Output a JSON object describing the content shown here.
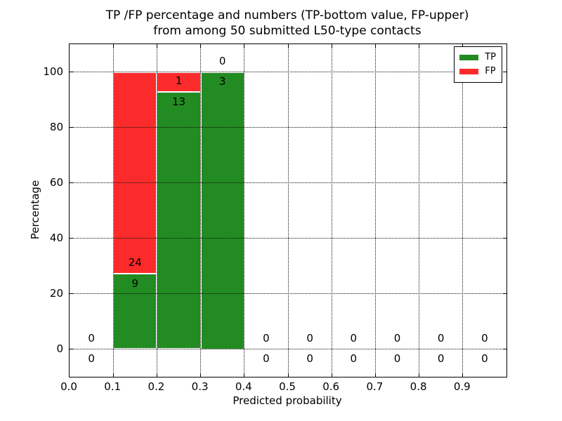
{
  "title": {
    "line1": "TP /FP percentage and numbers (TP-bottom value, FP-upper)",
    "line2": "from among 50 submitted L50-type contacts"
  },
  "axes": {
    "xlabel": "Predicted probability",
    "ylabel": "Percentage"
  },
  "legend": {
    "items": [
      {
        "label": "TP",
        "color": "#228b22"
      },
      {
        "label": "FP",
        "color": "#fc2b2b"
      }
    ]
  },
  "chart_data": {
    "type": "bar",
    "stacked": true,
    "normalized_to_percent": true,
    "title": "TP /FP percentage and numbers (TP-bottom value, FP-upper) from among 50 submitted L50-type contacts",
    "xlabel": "Predicted probability",
    "ylabel": "Percentage",
    "xlim": [
      0.0,
      1.0
    ],
    "ylim": [
      -10,
      110
    ],
    "grid": "dotted",
    "legend_position": "upper right",
    "x_tick_labels": [
      "0.0",
      "0.1",
      "0.2",
      "0.3",
      "0.4",
      "0.5",
      "0.6",
      "0.7",
      "0.8",
      "0.9"
    ],
    "y_tick_values": [
      0,
      20,
      40,
      60,
      80,
      100
    ],
    "bin_edges": [
      0.0,
      0.1,
      0.2,
      0.3,
      0.4,
      0.5,
      0.6,
      0.7,
      0.8,
      0.9,
      1.0
    ],
    "series": [
      {
        "name": "TP",
        "color": "#228b22",
        "counts": [
          0,
          9,
          13,
          3,
          0,
          0,
          0,
          0,
          0,
          0
        ]
      },
      {
        "name": "FP",
        "color": "#fc2b2b",
        "counts": [
          0,
          24,
          1,
          0,
          0,
          0,
          0,
          0,
          0,
          0
        ]
      }
    ],
    "tp_percent_per_bin": [
      0,
      27.3,
      92.9,
      100,
      0,
      0,
      0,
      0,
      0,
      0
    ],
    "fp_percent_per_bin": [
      0,
      72.7,
      7.1,
      0,
      0,
      0,
      0,
      0,
      0,
      0
    ]
  }
}
